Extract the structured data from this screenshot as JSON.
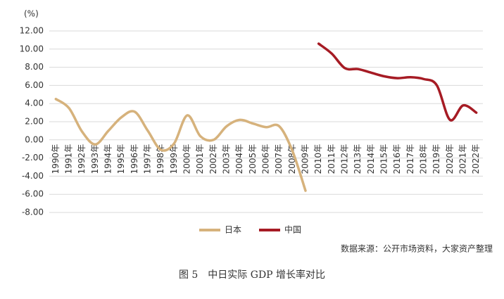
{
  "chart_data": {
    "type": "line",
    "y_label": "(%)",
    "categories": [
      "1990年",
      "1991年",
      "1992年",
      "1993年",
      "1994年",
      "1995年",
      "1996年",
      "1997年",
      "1998年",
      "1999年",
      "2000年",
      "2001年",
      "2002年",
      "2003年",
      "2004年",
      "2005年",
      "2006年",
      "2007年",
      "2008年",
      "2009年",
      "2010年",
      "2011年",
      "2012年",
      "2013年",
      "2014年",
      "2015年",
      "2016年",
      "2017年",
      "2018年",
      "2019年",
      "2020年",
      "2021年",
      "2022年"
    ],
    "series": [
      {
        "name": "日本",
        "color": "#d6b27c",
        "values": [
          4.5,
          3.5,
          0.9,
          -0.5,
          1.0,
          2.5,
          3.1,
          1.0,
          -1.1,
          -0.4,
          2.7,
          0.4,
          0.0,
          1.5,
          2.2,
          1.8,
          1.4,
          1.5,
          -1.2,
          -5.6,
          null,
          null,
          null,
          null,
          null,
          null,
          null,
          null,
          null,
          null,
          null,
          null,
          null
        ]
      },
      {
        "name": "中国",
        "color": "#a61b24",
        "values": [
          null,
          null,
          null,
          null,
          null,
          null,
          null,
          null,
          null,
          null,
          null,
          null,
          null,
          null,
          null,
          null,
          null,
          null,
          null,
          null,
          10.6,
          9.5,
          7.9,
          7.8,
          7.4,
          7.0,
          6.8,
          6.9,
          6.7,
          6.0,
          2.2,
          3.8,
          3.0
        ]
      }
    ],
    "ylim": [
      -8,
      12
    ],
    "yticks": [
      {
        "value": -8,
        "label": "-8.00"
      },
      {
        "value": -6,
        "label": "-6.00"
      },
      {
        "value": -4,
        "label": "-4.00"
      },
      {
        "value": -2,
        "label": "-2.00"
      },
      {
        "value": 0,
        "label": "0.00"
      },
      {
        "value": 2,
        "label": "2.00"
      },
      {
        "value": 4,
        "label": "4.00"
      },
      {
        "value": 6,
        "label": "6.00"
      },
      {
        "value": 8,
        "label": "8.00"
      },
      {
        "value": 10,
        "label": "10.00"
      },
      {
        "value": 12,
        "label": "12.00"
      }
    ],
    "grid": true,
    "source": "数据来源：公开市场资料，大家资产整理",
    "caption": "图 5　中日实际 GDP 增长率对比"
  }
}
